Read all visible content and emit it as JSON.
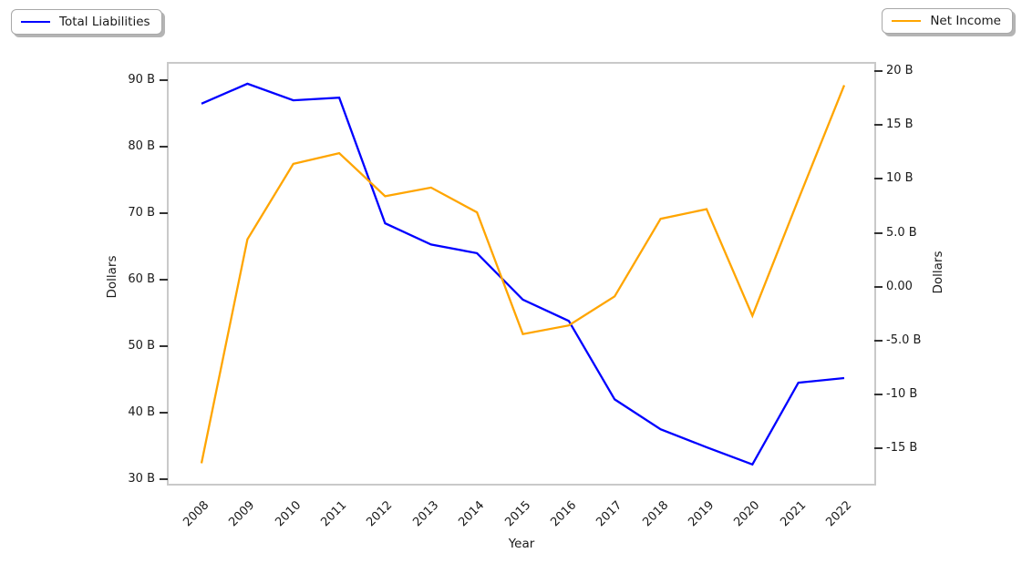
{
  "figure": {
    "background": "#ffffff"
  },
  "legend_left": {
    "label": "Total Liabilities",
    "color": "#0000ff"
  },
  "legend_right": {
    "label": "Net Income",
    "color": "#ffa500"
  },
  "chart_data": {
    "type": "line",
    "title": "",
    "xlabel": "Year",
    "grid": false,
    "x": [
      2008,
      2009,
      2010,
      2011,
      2012,
      2013,
      2014,
      2015,
      2016,
      2017,
      2018,
      2019,
      2020,
      2021,
      2022
    ],
    "series": [
      {
        "name": "Total Liabilities",
        "axis": "left",
        "color": "#0000ff",
        "values": [
          86.5,
          89.5,
          87.0,
          87.4,
          68.5,
          65.3,
          64.0,
          57.0,
          53.8,
          42.0,
          37.5,
          34.8,
          32.2,
          44.5,
          45.2
        ]
      },
      {
        "name": "Net Income",
        "axis": "right",
        "color": "#ffa500",
        "values": [
          -16.4,
          4.4,
          11.4,
          12.4,
          8.4,
          9.2,
          6.9,
          -4.4,
          -3.6,
          -0.9,
          6.3,
          7.2,
          -2.7,
          8.1,
          18.7
        ]
      }
    ],
    "left_axis": {
      "label": "Dollars",
      "unit": "B",
      "range": [
        29.3,
        92.5
      ],
      "ticks": [
        {
          "value": 30,
          "label": "30 B"
        },
        {
          "value": 40,
          "label": "40 B"
        },
        {
          "value": 50,
          "label": "50 B"
        },
        {
          "value": 60,
          "label": "60 B"
        },
        {
          "value": 70,
          "label": "70 B"
        },
        {
          "value": 80,
          "label": "80 B"
        },
        {
          "value": 90,
          "label": "90 B"
        }
      ]
    },
    "right_axis": {
      "label": "Dollars",
      "unit": "B",
      "range": [
        -18.3,
        20.7
      ],
      "ticks": [
        {
          "value": -15,
          "label": "-15 B"
        },
        {
          "value": -10,
          "label": "-10 B"
        },
        {
          "value": -5,
          "label": "-5.0 B"
        },
        {
          "value": 0,
          "label": "0.00"
        },
        {
          "value": 5,
          "label": "5.0 B"
        },
        {
          "value": 10,
          "label": "10 B"
        },
        {
          "value": 15,
          "label": "15 B"
        },
        {
          "value": 20,
          "label": "20 B"
        }
      ]
    },
    "legend": [
      {
        "label": "Total Liabilities",
        "color": "#0000ff",
        "position": "outside-upper-left"
      },
      {
        "label": "Net Income",
        "color": "#ffa500",
        "position": "outside-upper-right"
      }
    ]
  }
}
